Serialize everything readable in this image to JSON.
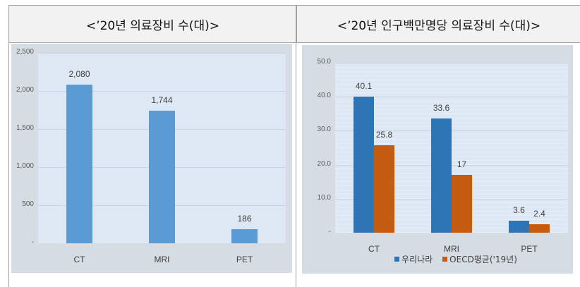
{
  "headers": {
    "left": "<’20년 의료장비 수(대)>",
    "right": "<’20년 인구백만명당 의료장비 수(대)>"
  },
  "chart_data": [
    {
      "type": "bar",
      "title": "’20년 의료장비 수(대)",
      "categories": [
        "CT",
        "MRI",
        "PET"
      ],
      "values": [
        2080,
        1744,
        186
      ],
      "value_labels": [
        "2,080",
        "1,744",
        "186"
      ],
      "yticks": [
        "-",
        "500",
        "1,000",
        "1,500",
        "2,000",
        "2,500"
      ],
      "ylim": [
        0,
        2500
      ],
      "grid": true,
      "color": "#5b9bd5",
      "xlabel": "",
      "ylabel": ""
    },
    {
      "type": "bar",
      "title": "’20년 인구백만명당 의료장비 수(대)",
      "categories": [
        "CT",
        "MRI",
        "PET"
      ],
      "series": [
        {
          "name": "우리나라",
          "values": [
            40.1,
            33.6,
            3.6
          ],
          "labels": [
            "40.1",
            "33.6",
            "3.6"
          ],
          "color": "#2e75b6"
        },
        {
          "name": "OECD평균('19년)",
          "values": [
            25.8,
            17,
            2.4
          ],
          "labels": [
            "25.8",
            "17",
            "2.4"
          ],
          "color": "#c55a11"
        }
      ],
      "yticks": [
        "-",
        "10.0",
        "20.0",
        "30.0",
        "40.0",
        "50.0"
      ],
      "ylim": [
        0,
        50
      ],
      "grid": true,
      "legend_position": "bottom",
      "xlabel": "",
      "ylabel": ""
    }
  ]
}
